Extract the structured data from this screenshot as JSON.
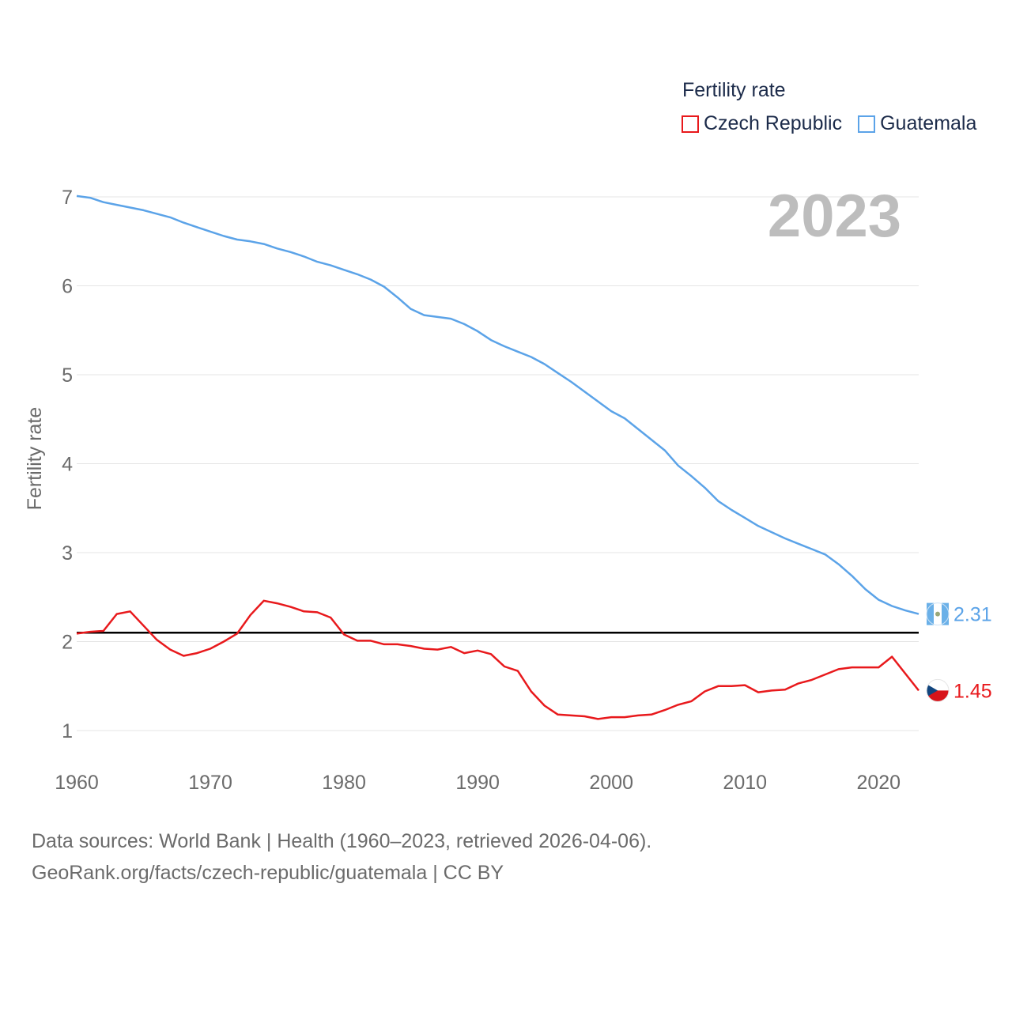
{
  "legend": {
    "title": "Fertility rate",
    "items": [
      {
        "name": "Czech Republic",
        "color": "#e8191c"
      },
      {
        "name": "Guatemala",
        "color": "#5ba3e8"
      }
    ]
  },
  "year_label": "2023",
  "footer": {
    "line1": "Data sources: World Bank | Health (1960–2023, retrieved 2026-04-06).",
    "line2": "GeoRank.org/facts/czech-republic/guatemala | CC BY"
  },
  "chart_data": {
    "type": "line",
    "ylabel": "Fertility rate",
    "xlabel": "",
    "xlim": [
      1960,
      2023
    ],
    "ylim": [
      0.6,
      7.1
    ],
    "x_ticks": [
      1960,
      1970,
      1980,
      1990,
      2000,
      2010,
      2020
    ],
    "y_ticks": [
      1,
      2,
      3,
      4,
      5,
      6,
      7
    ],
    "reference_line": {
      "value": 2.1,
      "color": "#000000"
    },
    "x": [
      1960,
      1961,
      1962,
      1963,
      1964,
      1965,
      1966,
      1967,
      1968,
      1969,
      1970,
      1971,
      1972,
      1973,
      1974,
      1975,
      1976,
      1977,
      1978,
      1979,
      1980,
      1981,
      1982,
      1983,
      1984,
      1985,
      1986,
      1987,
      1988,
      1989,
      1990,
      1991,
      1992,
      1993,
      1994,
      1995,
      1996,
      1997,
      1998,
      1999,
      2000,
      2001,
      2002,
      2003,
      2004,
      2005,
      2006,
      2007,
      2008,
      2009,
      2010,
      2011,
      2012,
      2013,
      2014,
      2015,
      2016,
      2017,
      2018,
      2019,
      2020,
      2021,
      2022,
      2023
    ],
    "series": [
      {
        "name": "Guatemala",
        "color": "#5ba3e8",
        "end_label": "2.31",
        "values": [
          7.01,
          6.99,
          6.94,
          6.91,
          6.88,
          6.85,
          6.81,
          6.77,
          6.71,
          6.66,
          6.61,
          6.56,
          6.52,
          6.5,
          6.47,
          6.42,
          6.38,
          6.33,
          6.27,
          6.23,
          6.18,
          6.13,
          6.07,
          5.99,
          5.87,
          5.74,
          5.67,
          5.65,
          5.63,
          5.57,
          5.49,
          5.39,
          5.32,
          5.26,
          5.2,
          5.12,
          5.02,
          4.92,
          4.81,
          4.7,
          4.59,
          4.51,
          4.39,
          4.27,
          4.15,
          3.98,
          3.86,
          3.73,
          3.58,
          3.48,
          3.39,
          3.3,
          3.23,
          3.16,
          3.1,
          3.04,
          2.98,
          2.87,
          2.74,
          2.59,
          2.47,
          2.4,
          2.35,
          2.31
        ]
      },
      {
        "name": "Czech Republic",
        "color": "#e8191c",
        "end_label": "1.45",
        "values": [
          2.09,
          2.11,
          2.12,
          2.31,
          2.34,
          2.18,
          2.02,
          1.91,
          1.84,
          1.87,
          1.92,
          2.0,
          2.09,
          2.3,
          2.46,
          2.43,
          2.39,
          2.34,
          2.33,
          2.27,
          2.08,
          2.01,
          2.01,
          1.97,
          1.97,
          1.95,
          1.92,
          1.91,
          1.94,
          1.87,
          1.9,
          1.86,
          1.72,
          1.67,
          1.44,
          1.28,
          1.18,
          1.17,
          1.16,
          1.13,
          1.15,
          1.15,
          1.17,
          1.18,
          1.23,
          1.29,
          1.33,
          1.44,
          1.5,
          1.5,
          1.51,
          1.43,
          1.45,
          1.46,
          1.53,
          1.57,
          1.63,
          1.69,
          1.71,
          1.71,
          1.71,
          1.83,
          1.64,
          1.45
        ]
      }
    ]
  }
}
